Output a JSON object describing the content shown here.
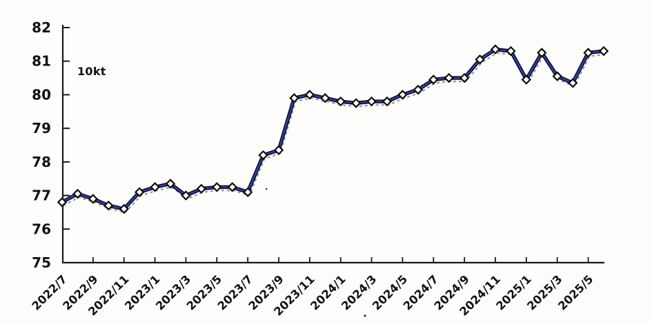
{
  "chart_data": {
    "type": "line",
    "title": "",
    "unit_label": "10kt",
    "x": [
      "2022/7",
      "2022/8",
      "2022/9",
      "2022/10",
      "2022/11",
      "2022/12",
      "2023/1",
      "2023/2",
      "2023/3",
      "2023/4",
      "2023/5",
      "2023/6",
      "2023/7",
      "2023/8",
      "2023/9",
      "2023/10",
      "2023/11",
      "2023/12",
      "2024/1",
      "2024/2",
      "2024/3",
      "2024/4",
      "2024/5",
      "2024/6",
      "2024/7",
      "2024/8",
      "2024/9",
      "2024/10",
      "2024/11",
      "2024/12",
      "2025/1",
      "2025/2",
      "2025/3",
      "2025/4",
      "2025/5",
      "2025/6"
    ],
    "values": [
      76.8,
      77.05,
      76.9,
      76.7,
      76.6,
      77.1,
      77.25,
      77.35,
      77.0,
      77.2,
      77.25,
      77.25,
      77.1,
      78.2,
      78.35,
      79.9,
      80.0,
      79.9,
      79.8,
      79.75,
      79.8,
      79.8,
      80.0,
      80.15,
      80.45,
      80.5,
      80.5,
      81.05,
      81.35,
      81.3,
      80.45,
      81.25,
      80.55,
      80.35,
      81.25,
      81.3
    ],
    "x_tick_step": 2,
    "x_tick_labels": [
      "2022/7",
      "2022/9",
      "2022/11",
      "2023/1",
      "2023/3",
      "2023/5",
      "2023/7",
      "2023/9",
      "2023/11",
      "2024/1",
      "2024/3",
      "2024/5",
      "2024/7",
      "2024/9",
      "2024/11",
      "2025/1",
      "2025/3",
      "2025/5"
    ],
    "ylim": [
      75,
      82
    ],
    "y_ticks": [
      75,
      76,
      77,
      78,
      79,
      80,
      81,
      82
    ],
    "grid": false,
    "legend_position": "none",
    "marker": "diamond",
    "colors": {
      "line": "#2840c4",
      "line_outline": "#0d0d0d",
      "marker_fill": "#ffffff",
      "marker_stroke": "#0d0d0d",
      "ghost_line": "#8f8f8f",
      "axis": "#161616",
      "text": "#111111",
      "background": "#fdfdfb"
    }
  }
}
